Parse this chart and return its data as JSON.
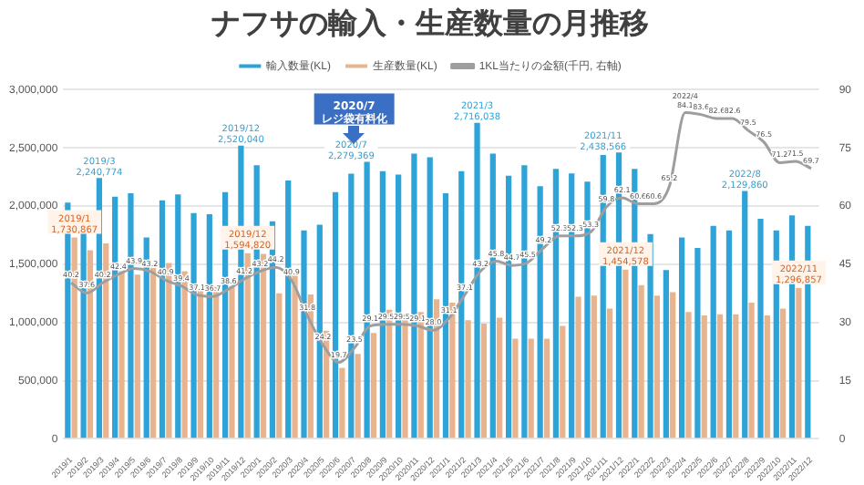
{
  "chart_data": {
    "type": "bar",
    "title": "ナフサの輸入・生産数量の月推移",
    "categories": [
      "2019/1",
      "2019/2",
      "2019/3",
      "2019/4",
      "2019/5",
      "2019/6",
      "2019/7",
      "2019/8",
      "2019/9",
      "2019/10",
      "2019/11",
      "2019/12",
      "2020/1",
      "2020/2",
      "2020/3",
      "2020/4",
      "2020/5",
      "2020/6",
      "2020/7",
      "2020/8",
      "2020/9",
      "2020/10",
      "2020/11",
      "2020/12",
      "2021/1",
      "2021/2",
      "2021/3",
      "2021/4",
      "2021/5",
      "2021/6",
      "2021/7",
      "2021/8",
      "2021/9",
      "2021/10",
      "2021/11",
      "2021/12",
      "2022/1",
      "2022/2",
      "2022/3",
      "2022/4",
      "2022/5",
      "2022/6",
      "2022/7",
      "2022/8",
      "2022/9",
      "2022/10",
      "2022/11",
      "2022/12"
    ],
    "series": [
      {
        "name": "輸入数量(KL)",
        "color": "#2ea3d8",
        "values": [
          2030000,
          1790000,
          2240774,
          2080000,
          2110000,
          1730000,
          2050000,
          2100000,
          1940000,
          1930000,
          2120000,
          2520040,
          2350000,
          1870000,
          2220000,
          1790000,
          1840000,
          2120000,
          2279369,
          2380000,
          2300000,
          2270000,
          2450000,
          2420000,
          2110000,
          2300000,
          2716038,
          2450000,
          2260000,
          2350000,
          2170000,
          2320000,
          2280000,
          2210000,
          2438566,
          2460000,
          2320000,
          1760000,
          1450000,
          1730000,
          1640000,
          1830000,
          1790000,
          2129860,
          1890000,
          1790000,
          1920000,
          1830000
        ]
      },
      {
        "name": "生産数量(KL)",
        "color": "#e8b48f",
        "values": [
          1730867,
          1620000,
          1680000,
          1440000,
          1410000,
          1470000,
          1510000,
          1440000,
          1290000,
          1310000,
          1310000,
          1594820,
          1590000,
          1250000,
          1410000,
          1240000,
          930000,
          610000,
          730000,
          910000,
          1110000,
          1070000,
          1090000,
          1200000,
          1170000,
          1020000,
          990000,
          1040000,
          860000,
          860000,
          860000,
          970000,
          1220000,
          1230000,
          1120000,
          1454578,
          1320000,
          1230000,
          1260000,
          1090000,
          1060000,
          1070000,
          1070000,
          1170000,
          1060000,
          1120000,
          1296857,
          null
        ]
      },
      {
        "name": "1KL当たりの金額(千円, 右軸)",
        "color": "#9e9e9e",
        "type": "line",
        "axis": "y2",
        "values": [
          40.2,
          37.6,
          40.2,
          42.4,
          43.9,
          43.2,
          40.9,
          39.4,
          37.1,
          36.7,
          38.6,
          41.2,
          43.2,
          44.2,
          40.9,
          31.8,
          24.2,
          19.7,
          23.5,
          29.1,
          29.5,
          29.5,
          29.1,
          28.0,
          31.1,
          37.1,
          43.2,
          45.8,
          44.7,
          45.5,
          49.2,
          52.3,
          52.3,
          53.3,
          59.8,
          62.1,
          60.6,
          60.6,
          65.2,
          84.1,
          83.6,
          82.6,
          82.6,
          79.5,
          76.5,
          71.2,
          71.5,
          69.7
        ],
        "value_labels": [
          "40.2",
          "37.6",
          "40.2",
          "42.4",
          "43.9",
          "43.2",
          "40.9",
          "39.4",
          "37.1",
          "36.7",
          "38.6",
          "41.2",
          "43.2",
          "44.2",
          "40.9",
          "31.8",
          "24.2",
          "19.7",
          "23.5",
          "29.1",
          "29.5",
          "29.5",
          "29.1",
          "28.0",
          "31.1",
          "37.1",
          "43.2",
          "45.8",
          "44.7",
          "45.5",
          "49.2",
          "52.3",
          "52.3",
          "53.3",
          "59.8",
          "62.1",
          "60.6",
          "60.6",
          "65.2",
          "84.1",
          "83.6",
          "82.6",
          "82.6",
          "79.5",
          "76.5",
          "71.2",
          "71.5",
          "69.7"
        ]
      }
    ],
    "ylim": [
      0,
      3000000
    ],
    "yticks": [
      {
        "value": 0,
        "label": "0"
      },
      {
        "value": 500000,
        "label": "500,000"
      },
      {
        "value": 1000000,
        "label": "1,000,000"
      },
      {
        "value": 1500000,
        "label": "1,500,000"
      },
      {
        "value": 2000000,
        "label": "2,000,000"
      },
      {
        "value": 2500000,
        "label": "2,500,000"
      },
      {
        "value": 3000000,
        "label": "3,000,000"
      }
    ],
    "y2lim": [
      0,
      90
    ],
    "y2ticks": [
      0,
      15,
      30,
      45,
      60,
      75,
      90
    ],
    "grid": "y",
    "legend": "top",
    "marker": "none",
    "annotations": [
      "2020/7\nレジ袋有料化",
      {
        "text": "2019/1\n1,730,867",
        "x": "2019/1",
        "y": 1730867
      },
      {
        "text": "2019/3\n2,240,774",
        "x": "2019/3",
        "y": 2240774
      },
      {
        "text": "2019/12\n2,520,040",
        "x": "2019/12",
        "y": 2520040
      },
      {
        "text": "2019/12\n1,594,820",
        "x": "2019/12",
        "y": 1594820
      },
      {
        "text": "2020/7\n2,279,369",
        "x": "2020/7",
        "y": 2279369
      },
      {
        "text": "2021/3\n2,716,038",
        "x": "2021/3",
        "y": 2716038
      },
      {
        "text": "2021/11\n2,438,566",
        "x": "2021/11",
        "y": 2438566
      },
      {
        "text": "2021/12\n1,454,578",
        "x": "2021/12",
        "y": 1454578
      },
      "2022/4",
      {
        "text": "2022/8\n2,129,860",
        "x": "2022/8",
        "y": 2129860
      },
      {
        "text": "2022/11\n1,296,857",
        "x": "2022/11",
        "y": 1296857
      }
    ]
  }
}
